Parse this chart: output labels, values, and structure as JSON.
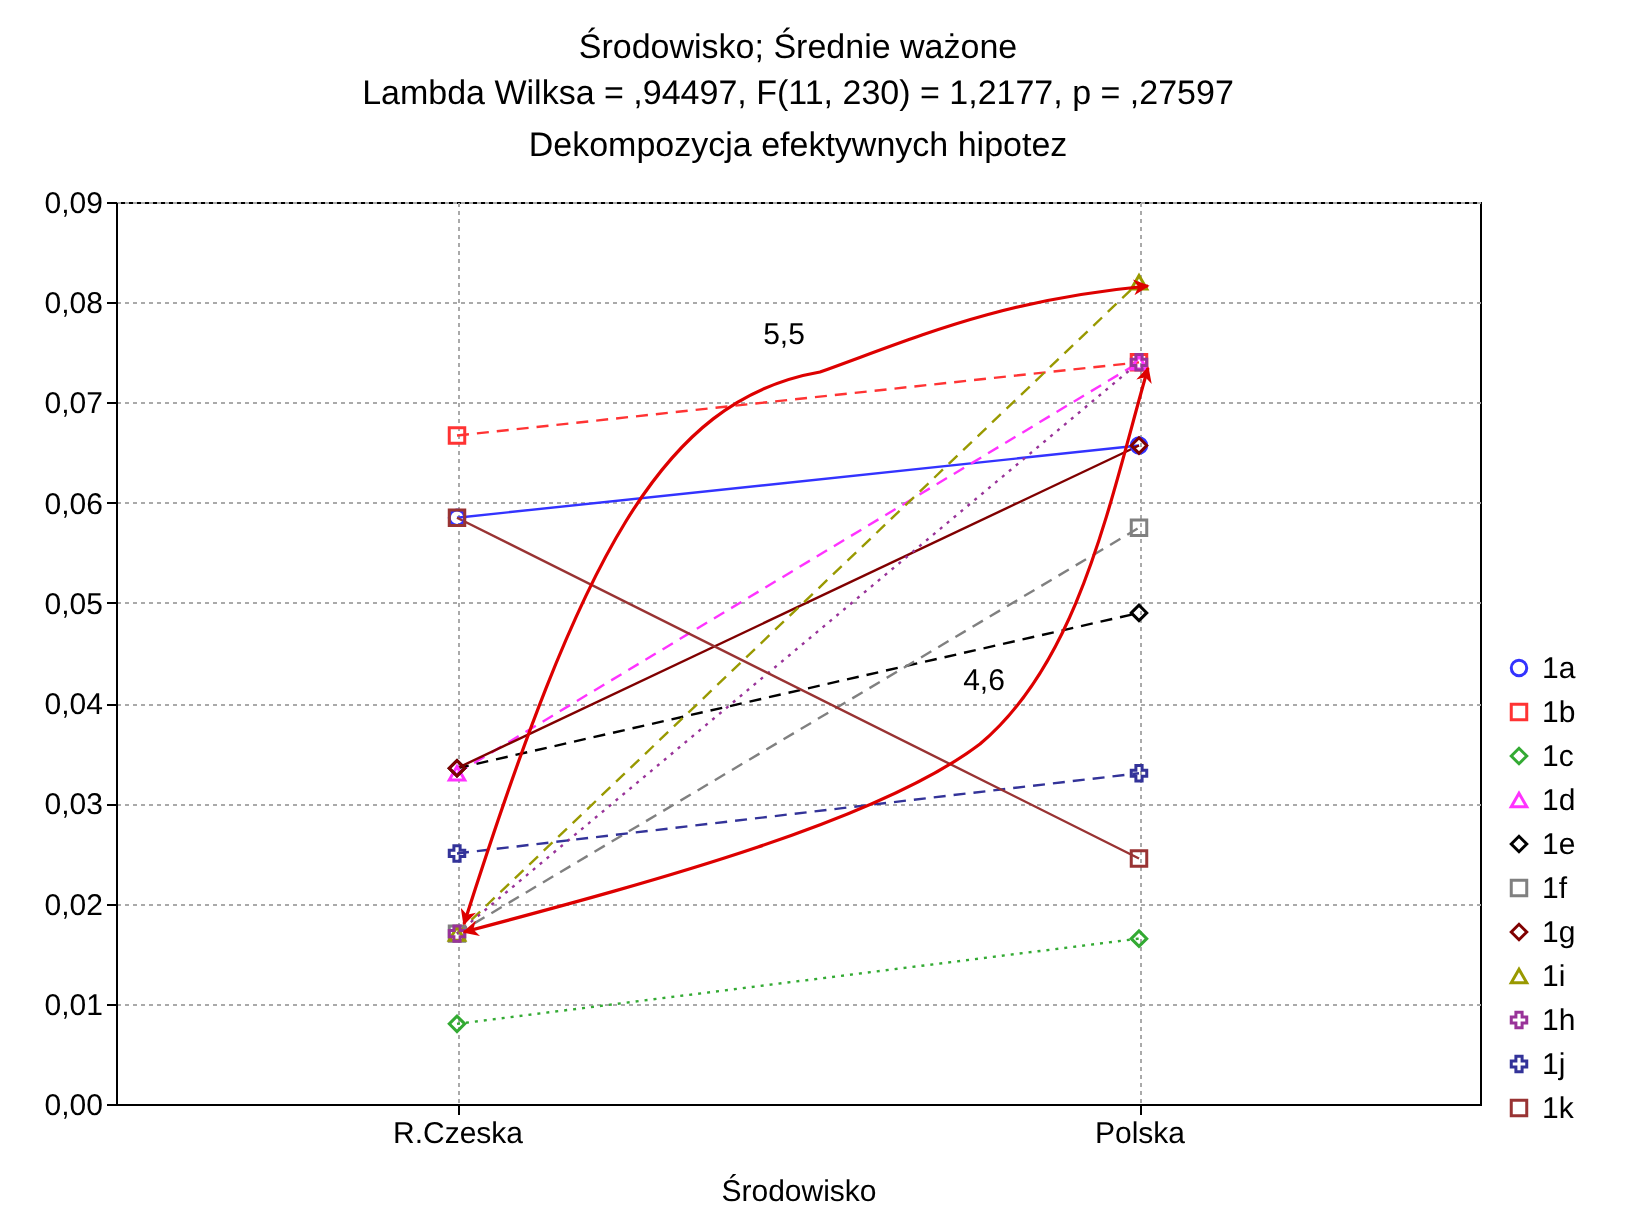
{
  "chart_data": {
    "type": "line",
    "title": "Środowisko; Średnie ważone",
    "subtitle": "Lambda Wilksa = ,94497, F(11, 230) = 1,2177, p = ,27597\nDekompozycja efektywnych hipotez",
    "xlabel": "Środowisko",
    "categories": [
      "R.Czeska",
      "Polska"
    ],
    "ylim": [
      0,
      0.09
    ],
    "yticks": [
      {
        "value": 0,
        "label": "0,00"
      },
      {
        "value": 0.01,
        "label": "0,01"
      },
      {
        "value": 0.02,
        "label": "0,02"
      },
      {
        "value": 0.03,
        "label": "0,03"
      },
      {
        "value": 0.04,
        "label": "0,04"
      },
      {
        "value": 0.05,
        "label": "0,05"
      },
      {
        "value": 0.06,
        "label": "0,06"
      },
      {
        "value": 0.07,
        "label": "0,07"
      },
      {
        "value": 0.08,
        "label": "0,08"
      },
      {
        "value": 0.09,
        "label": "0,09"
      }
    ],
    "grid": true,
    "legend": "right",
    "annotations": [
      "5,5",
      "4,6"
    ],
    "series": [
      {
        "name": "1a",
        "color": "#3333ff",
        "values": [
          0.0585,
          0.0657
        ],
        "marker": "circle",
        "line_style": "solid"
      },
      {
        "name": "1b",
        "color": "#ff3333",
        "values": [
          0.0667,
          0.074
        ],
        "marker": "square",
        "line_style": "dashed"
      },
      {
        "name": "1c",
        "color": "#33aa33",
        "values": [
          0.008,
          0.0165
        ],
        "marker": "diamond",
        "line_style": "dotted"
      },
      {
        "name": "1d",
        "color": "#ff33ff",
        "values": [
          0.033,
          0.074
        ],
        "marker": "triangle",
        "line_style": "dashed"
      },
      {
        "name": "1e",
        "color": "#000000",
        "values": [
          0.0335,
          0.049
        ],
        "marker": "diamond",
        "line_style": "dashed"
      },
      {
        "name": "1f",
        "color": "#808080",
        "values": [
          0.017,
          0.0575
        ],
        "marker": "square",
        "line_style": "dashed"
      },
      {
        "name": "1g",
        "color": "#800000",
        "values": [
          0.0335,
          0.0657
        ],
        "marker": "diamond",
        "line_style": "solid"
      },
      {
        "name": "1i",
        "color": "#999900",
        "values": [
          0.017,
          0.082
        ],
        "marker": "triangle",
        "line_style": "dashed"
      },
      {
        "name": "1h",
        "color": "#993399",
        "values": [
          0.017,
          0.074
        ],
        "marker": "cross",
        "line_style": "dotted"
      },
      {
        "name": "1j",
        "color": "#333399",
        "values": [
          0.025,
          0.033
        ],
        "marker": "cross",
        "line_style": "dashed"
      },
      {
        "name": "1k",
        "color": "#993333",
        "values": [
          0.0585,
          0.0245
        ],
        "marker": "square",
        "line_style": "solid"
      }
    ]
  }
}
